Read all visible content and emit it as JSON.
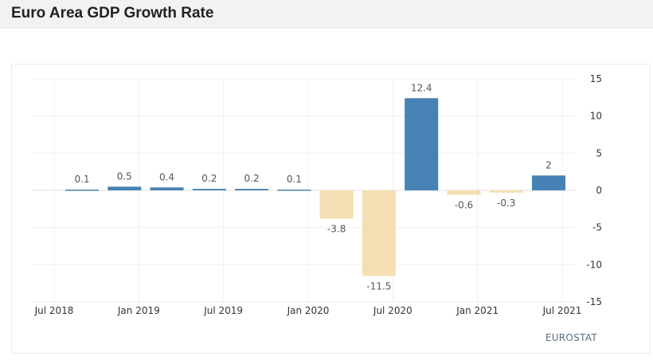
{
  "title": "Euro Area GDP Growth Rate",
  "source": "EUROSTAT",
  "chart_data": {
    "type": "bar",
    "title": "Euro Area GDP Growth Rate",
    "xlabel": "",
    "ylabel": "",
    "categories": [
      "Q3 2018",
      "Q4 2018",
      "Q1 2019",
      "Q2 2019",
      "Q3 2019",
      "Q4 2019",
      "Q1 2020",
      "Q2 2020",
      "Q3 2020",
      "Q4 2020",
      "Q1 2021",
      "Q2 2021"
    ],
    "values": [
      0.1,
      0.5,
      0.4,
      0.2,
      0.2,
      0.1,
      -3.8,
      -11.5,
      12.4,
      -0.6,
      -0.3,
      2
    ],
    "data_labels": [
      "0.1",
      "0.5",
      "0.4",
      "0.2",
      "0.2",
      "0.1",
      "-3.8",
      "-11.5",
      "12.4",
      "-0.6",
      "-0.3",
      "2"
    ],
    "ylim": [
      -15,
      15
    ],
    "y_ticks": [
      15,
      10,
      5,
      0,
      -5,
      -10,
      -15
    ],
    "y_tick_labels": [
      "15",
      "10",
      "5",
      "0",
      "-5",
      "-10",
      "-15"
    ],
    "x_tick_labels": [
      "Jul 2018",
      "Jan 2019",
      "Jul 2019",
      "Jan 2020",
      "Jul 2020",
      "Jan 2021",
      "Jul 2021"
    ],
    "x_tick_positions": [
      0,
      1,
      2,
      3,
      4,
      5,
      6
    ],
    "y_axis_side": "right",
    "grid": true,
    "colors": {
      "positive": "#4682b4",
      "negative": "#f5deb3",
      "grid": "#f0f0f0",
      "zero_line": "#e0e0e0"
    }
  }
}
